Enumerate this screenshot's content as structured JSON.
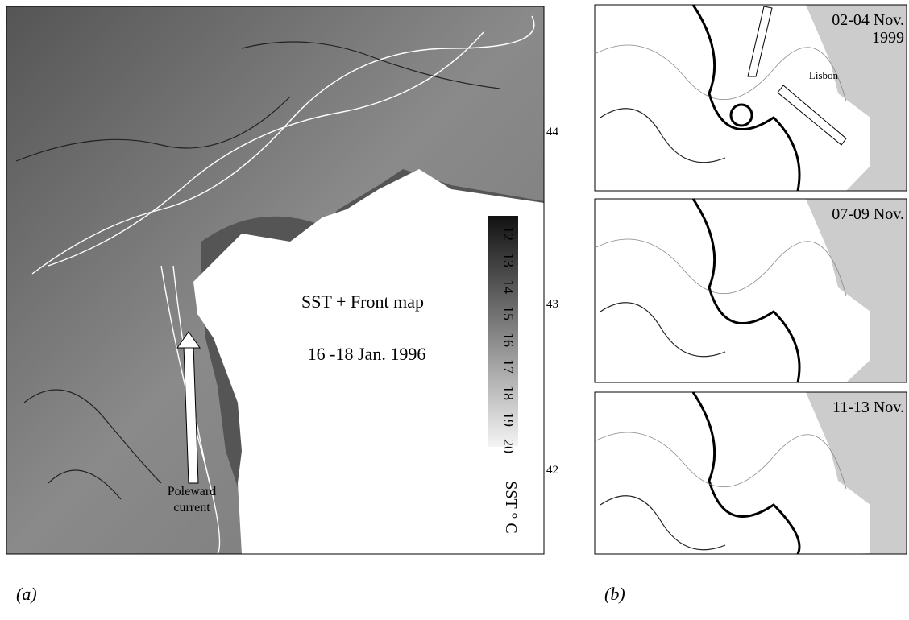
{
  "panel_a": {
    "title": "SST + Front map",
    "date": "16 -18 Jan. 1996",
    "arrow_label": [
      "Poleward",
      "current"
    ],
    "colorbar": {
      "ticks": [
        "12",
        "13",
        "14",
        "15",
        "16",
        "17",
        "18",
        "19",
        "20"
      ],
      "label": "SST ° C"
    },
    "latitudes": [
      "44",
      "43",
      "42"
    ],
    "caption": "(a)"
  },
  "panel_b": {
    "maps": [
      {
        "date": [
          "02-04 Nov.",
          "1999"
        ],
        "place": "Lisbon"
      },
      {
        "date": [
          "07-09 Nov."
        ]
      },
      {
        "date": [
          "11-13 Nov."
        ]
      }
    ],
    "caption": "(b)"
  }
}
